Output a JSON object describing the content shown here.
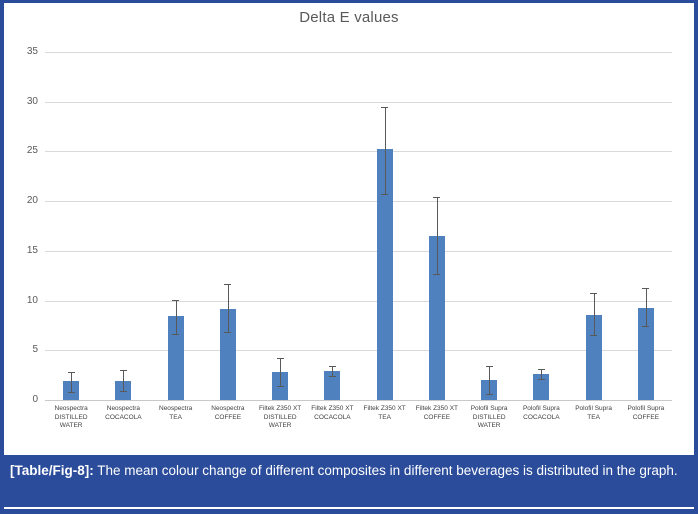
{
  "figure": {
    "caption_label": "[Table/Fig-8]:",
    "caption_text": " The mean colour change of different composites in different beverages is distributed in the graph."
  },
  "colors": {
    "bar_fill": "#4E81BD",
    "error_bar": "#595959",
    "gridline": "#D9D9D9",
    "axis_line": "#C9C9C9",
    "frame_blue": "#2B4C9B",
    "caption_bg": "#2B4C9B",
    "title_text": "#595959",
    "tick_text": "#595959",
    "xlabel_text": "#404040",
    "chart_bg": "#FFFFFF"
  },
  "chart_data": {
    "type": "bar",
    "title": "Delta E values",
    "legend": "none",
    "grid": "horizontal",
    "ylim": [
      0,
      35
    ],
    "yticks": [
      0,
      5,
      10,
      15,
      20,
      25,
      30,
      35
    ],
    "categories": [
      "Neospectra DISTILLED WATER",
      "Neospectra COCACOLA",
      "Neospectra TEA",
      "Neospectra COFFEE",
      "Filtek Z350 XT DISTILLED WATER",
      "Filtek Z350 XT COCACOLA",
      "Filtek Z350 XT TEA",
      "Filtek Z350 XT COFFEE",
      "Polofil Supra DISTILLED WATER",
      "Polofil Supra COCACOLA",
      "Polofil Supra TEA",
      "Polofil Supra COFFEE"
    ],
    "category_lines": [
      [
        "Neospectra",
        "DISTILLED",
        "WATER"
      ],
      [
        "Neospectra",
        "COCACOLA"
      ],
      [
        "Neospectra",
        "TEA"
      ],
      [
        "Neospectra",
        "COFFEE"
      ],
      [
        "Filtek Z350 XT",
        "DISTILLED",
        "WATER"
      ],
      [
        "Filtek Z350 XT",
        "COCACOLA"
      ],
      [
        "Filtek Z350 XT",
        "TEA"
      ],
      [
        "Filtek Z350 XT",
        "COFFEE"
      ],
      [
        "Polofil Supra",
        "DISTILLED",
        "WATER"
      ],
      [
        "Polofil Supra",
        "COCACOLA"
      ],
      [
        "Polofil Supra",
        "TEA"
      ],
      [
        "Polofil Supra",
        "COFFEE"
      ]
    ],
    "values": [
      1.9,
      1.9,
      8.4,
      9.2,
      2.8,
      2.9,
      25.2,
      16.5,
      2.0,
      2.6,
      8.5,
      9.3
    ],
    "error_low": [
      0.8,
      0.9,
      6.6,
      6.8,
      1.4,
      2.4,
      20.7,
      12.7,
      0.6,
      2.1,
      6.5,
      7.4
    ],
    "error_high": [
      2.8,
      3.0,
      10.1,
      11.7,
      4.2,
      3.4,
      29.5,
      20.4,
      3.4,
      3.1,
      10.8,
      11.3
    ]
  }
}
